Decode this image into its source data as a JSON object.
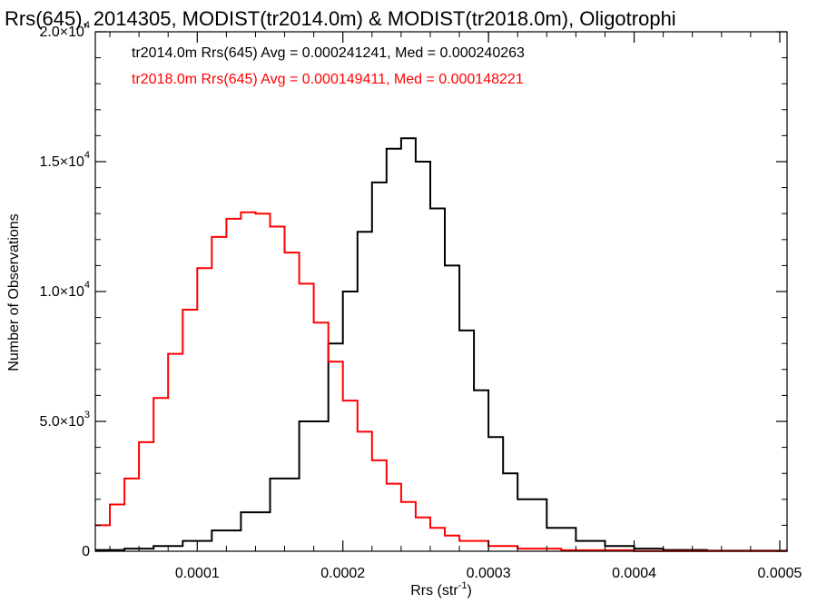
{
  "chart_data": {
    "type": "line",
    "title": "Rrs(645), 2014305, MODIST(tr2014.0m) & MODIST(tr2018.0m), Oligotrophi",
    "xlabel_main": "Rrs (str",
    "xlabel_sup": "-1",
    "xlabel_end": ")",
    "ylabel": "Number of Observations",
    "xlim": [
      3e-05,
      0.000505
    ],
    "ylim": [
      0,
      20000
    ],
    "x_ticks": [
      {
        "value": 0.0001,
        "label": "0.0001"
      },
      {
        "value": 0.0002,
        "label": "0.0002"
      },
      {
        "value": 0.0003,
        "label": "0.0003"
      },
      {
        "value": 0.0004,
        "label": "0.0004"
      },
      {
        "value": 0.0005,
        "label": "0.0005"
      }
    ],
    "y_ticks": [
      {
        "value": 0,
        "mant": "0",
        "exp": ""
      },
      {
        "value": 5000,
        "mant": "5.0×10",
        "exp": "3"
      },
      {
        "value": 10000,
        "mant": "1.0×10",
        "exp": "4"
      },
      {
        "value": 15000,
        "mant": "1.5×10",
        "exp": "4"
      },
      {
        "value": 20000,
        "mant": "2.0×10",
        "exp": "4"
      }
    ],
    "annotations": [
      {
        "text": "tr2014.0m Rrs(645) Avg = 0.000241241, Med = 0.000240263",
        "color": "#000000"
      },
      {
        "text": "tr2018.0m Rrs(645) Avg = 0.000149411, Med = 0.000148221",
        "color": "#ff0000"
      }
    ],
    "series": [
      {
        "color": "#000000",
        "style": "step",
        "x": [
          3e-05,
          5e-05,
          7e-05,
          9e-05,
          0.00011,
          0.00013,
          0.00015,
          0.00017,
          0.00019,
          0.0002,
          0.00021,
          0.00022,
          0.00023,
          0.00024,
          0.00025,
          0.00026,
          0.00027,
          0.00028,
          0.00029,
          0.0003,
          0.00031,
          0.00032,
          0.00034,
          0.00036,
          0.00038,
          0.0004,
          0.00042,
          0.00045,
          0.000505
        ],
        "y": [
          50,
          100,
          200,
          400,
          800,
          1500,
          2800,
          5000,
          8000,
          10000,
          12300,
          14200,
          15500,
          15900,
          15000,
          13200,
          11000,
          8500,
          6200,
          4400,
          3000,
          2000,
          900,
          400,
          200,
          100,
          50,
          20,
          0
        ]
      },
      {
        "color": "#ff0000",
        "style": "step",
        "x": [
          3e-05,
          4e-05,
          5e-05,
          6e-05,
          7e-05,
          8e-05,
          9e-05,
          0.0001,
          0.00011,
          0.00012,
          0.00013,
          0.00014,
          0.00015,
          0.00016,
          0.00017,
          0.00018,
          0.00019,
          0.0002,
          0.00021,
          0.00022,
          0.00023,
          0.00024,
          0.00025,
          0.00026,
          0.00027,
          0.00028,
          0.0003,
          0.00032,
          0.00035,
          0.0004,
          0.000505
        ],
        "y": [
          1000,
          1800,
          2800,
          4200,
          5900,
          7600,
          9300,
          10900,
          12100,
          12800,
          13050,
          13000,
          12500,
          11500,
          10300,
          8800,
          7300,
          5800,
          4600,
          3500,
          2600,
          1900,
          1300,
          900,
          600,
          400,
          200,
          100,
          40,
          10,
          0
        ]
      }
    ]
  }
}
